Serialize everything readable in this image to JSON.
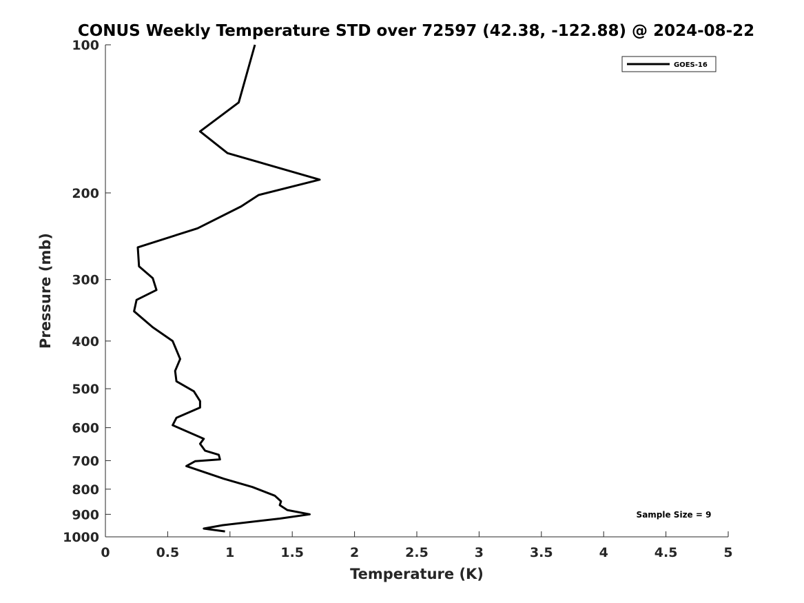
{
  "chart_data": {
    "type": "line",
    "title": "CONUS Weekly Temperature STD over 72597 (42.38, -122.88) @ 2024-08-22",
    "xlabel": "Temperature (K)",
    "ylabel": "Pressure (mb)",
    "xlim": [
      0,
      5
    ],
    "ylim": [
      1000,
      100
    ],
    "yscale": "log",
    "y_reversed": true,
    "xticks": [
      0,
      0.5,
      1,
      1.5,
      2,
      2.5,
      3,
      3.5,
      4,
      4.5,
      5
    ],
    "xtick_labels": [
      "0",
      "0.5",
      "1",
      "1.5",
      "2",
      "2.5",
      "3",
      "3.5",
      "4",
      "4.5",
      "5"
    ],
    "yticks": [
      100,
      200,
      300,
      400,
      500,
      600,
      700,
      800,
      900,
      1000
    ],
    "ytick_labels": [
      "100",
      "200",
      "300",
      "400",
      "500",
      "600",
      "700",
      "800",
      "900",
      "1000"
    ],
    "grid": false,
    "legend_position": "top-right",
    "series": [
      {
        "name": "GOES-16",
        "color": "#000000",
        "x": [
          0.96,
          0.79,
          0.94,
          1.4,
          1.64,
          1.46,
          1.4,
          1.41,
          1.36,
          1.18,
          0.95,
          0.65,
          0.72,
          0.92,
          0.91,
          0.8,
          0.76,
          0.79,
          0.54,
          0.57,
          0.76,
          0.76,
          0.71,
          0.57,
          0.56,
          0.6,
          0.54,
          0.38,
          0.23,
          0.25,
          0.41,
          0.38,
          0.27,
          0.26,
          0.74,
          1.09,
          1.23,
          1.72,
          0.98,
          0.76,
          1.07,
          1.2
        ],
        "y": [
          975,
          962,
          947,
          918,
          900,
          882,
          862,
          847,
          825,
          792,
          762,
          718,
          702,
          696,
          681,
          668,
          647,
          632,
          593,
          573,
          546,
          530,
          506,
          483,
          460,
          435,
          400,
          375,
          348,
          330,
          315,
          298,
          282,
          258,
          236,
          213,
          202,
          188,
          166,
          150,
          131,
          100
        ]
      }
    ],
    "annotations": [
      "Sample Size = 9"
    ]
  }
}
